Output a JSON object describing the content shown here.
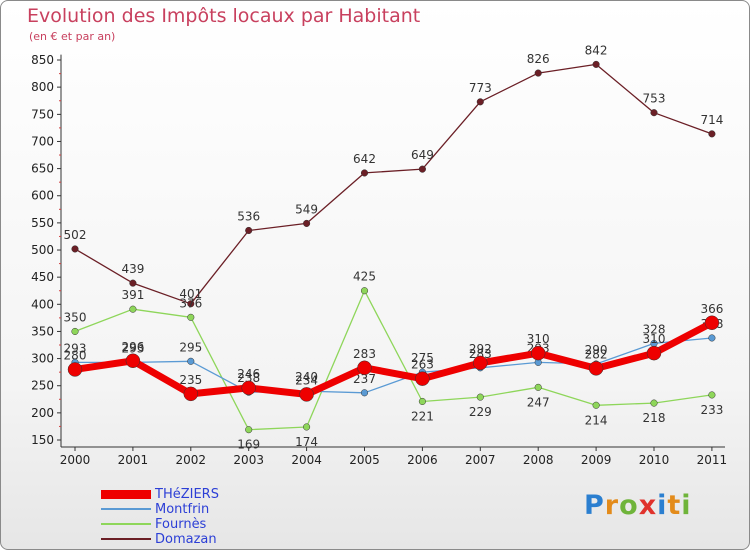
{
  "chart_data": {
    "type": "line",
    "title": "Evolution des Impôts locaux par Habitant",
    "subtitle": "(en € et par an)",
    "xlabel": "",
    "ylabel": "",
    "x": [
      "2000",
      "2001",
      "2002",
      "2003",
      "2004",
      "2005",
      "2006",
      "2007",
      "2008",
      "2009",
      "2010",
      "2011"
    ],
    "yticks": [
      150,
      200,
      250,
      300,
      350,
      400,
      450,
      500,
      550,
      600,
      650,
      700,
      750,
      800,
      850
    ],
    "ylim": [
      150,
      860
    ],
    "grid": false,
    "legend_position": "bottom-left",
    "series": [
      {
        "name": "Domazan",
        "color": "#6b1f26",
        "values": [
          502,
          439,
          401,
          536,
          549,
          642,
          649,
          773,
          826,
          842,
          753,
          714
        ]
      },
      {
        "name": "Fournès",
        "color": "#8ed65a",
        "values": [
          350,
          391,
          376,
          169,
          174,
          425,
          221,
          229,
          247,
          214,
          218,
          233
        ]
      },
      {
        "name": "Montfrin",
        "color": "#5a9ad4",
        "values": [
          293,
          293,
          295,
          238,
          240,
          237,
          275,
          283,
          293,
          290,
          328,
          338
        ]
      },
      {
        "name": "THéZIERS",
        "color": "#ee0000",
        "values": [
          280,
          296,
          235,
          246,
          234,
          283,
          263,
          292,
          310,
          282,
          310,
          366
        ]
      }
    ]
  },
  "legend": [
    {
      "name": "THéZIERS",
      "color": "#ee0000"
    },
    {
      "name": "Montfrin",
      "color": "#5a9ad4"
    },
    {
      "name": "Fournès",
      "color": "#8ed65a"
    },
    {
      "name": "Domazan",
      "color": "#6b1f26"
    }
  ],
  "logo": {
    "letters": [
      "P",
      "r",
      "o",
      "x",
      "i",
      "t",
      "i"
    ],
    "colors": [
      "#2b7fd0",
      "#e38b1a",
      "#6fb43a",
      "#e0322c",
      "#2b7fd0",
      "#e38b1a",
      "#6fb43a"
    ]
  }
}
